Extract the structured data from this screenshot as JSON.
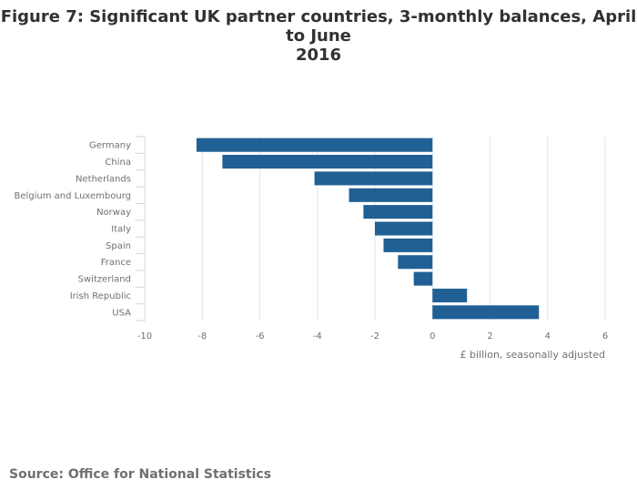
{
  "chart_data": {
    "type": "bar",
    "orientation": "horizontal",
    "title_line1": "Figure 7: Significant UK partner countries, 3-monthly balances, April to June",
    "title_line2": "2016",
    "categories": [
      "Germany",
      "China",
      "Netherlands",
      "Belgium and Luxembourg",
      "Norway",
      "Italy",
      "Spain",
      "France",
      "Switzerland",
      "Irish Republic",
      "USA"
    ],
    "values": [
      -8.2,
      -7.3,
      -4.1,
      -2.9,
      -2.4,
      -2.0,
      -1.7,
      -1.2,
      -0.65,
      1.2,
      3.7
    ],
    "xlabel": "£ billion, seasonally adjusted",
    "ylabel": "",
    "xlim": [
      -10,
      6
    ],
    "xticks": [
      "-10",
      "-8",
      "-6",
      "-4",
      "-2",
      "0",
      "2",
      "4",
      "6"
    ],
    "xtick_values": [
      -10,
      -8,
      -6,
      -4,
      -2,
      0,
      2,
      4,
      6
    ],
    "grid": true,
    "bar_color": "#206095",
    "grid_color": "#e6e6e6",
    "axis_color": "#d0d6e6",
    "text_color": "#707071"
  },
  "source": "Source: Office for National Statistics"
}
